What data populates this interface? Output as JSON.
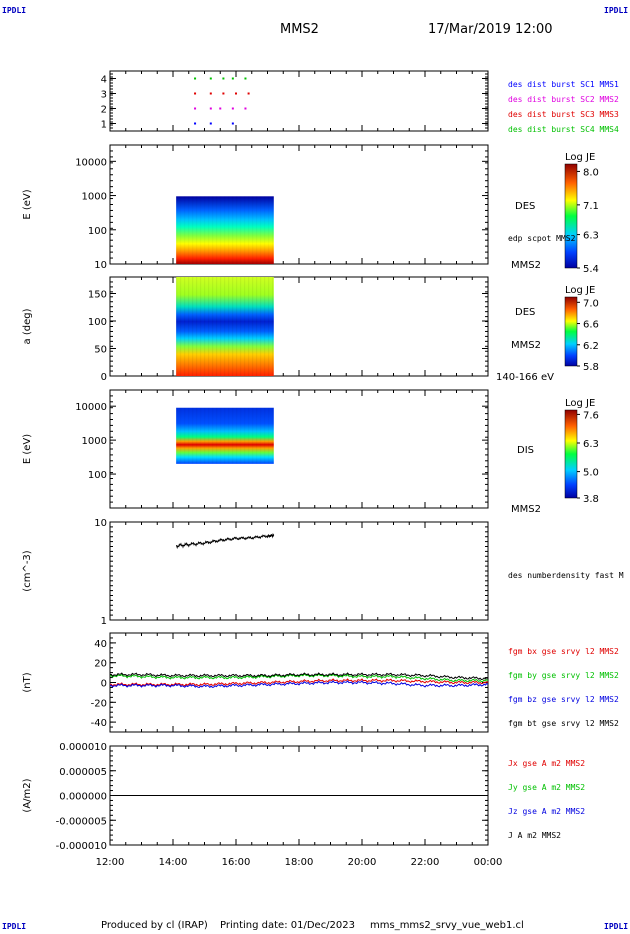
{
  "header": {
    "corner_label": "IPDLI",
    "satellite": "MMS2",
    "date": "17/Mar/2019 12:00"
  },
  "footer": {
    "produced_by": "Produced by cl (IRAP)",
    "printing_date": "Printing date: 01/Dec/2023",
    "filename": "mms_mms2_srvy_vue_web1.cl"
  },
  "colors": {
    "mms1": "#0000ff",
    "mms2": "#e000e0",
    "mms3": "#e00000",
    "mms4": "#00c000",
    "bt": "#000000"
  },
  "chart_data": [
    {
      "type": "scatter",
      "ylim": [
        0.5,
        4.5
      ],
      "yticks": [
        "1",
        "2",
        "3",
        "4"
      ],
      "series": [
        {
          "name": "des dist burst SC1 MMS1",
          "y": 1,
          "x_hours": [
            14.7,
            15.2,
            15.9
          ],
          "color": "#0000ff"
        },
        {
          "name": "des dist burst SC2 MMS2",
          "y": 2,
          "x_hours": [
            14.7,
            15.2,
            15.5,
            15.9,
            16.3
          ],
          "color": "#e000e0"
        },
        {
          "name": "des dist burst SC3 MMS3",
          "y": 3,
          "x_hours": [
            14.7,
            15.2,
            15.6,
            16.0,
            16.4
          ],
          "color": "#e00000"
        },
        {
          "name": "des dist burst SC4 MMS4",
          "y": 4,
          "x_hours": [
            14.7,
            15.2,
            15.6,
            15.9,
            16.3
          ],
          "color": "#00c000"
        }
      ]
    },
    {
      "type": "heatmap",
      "ylabel": "E (eV)",
      "yscale": "log",
      "ylim": [
        10,
        30000
      ],
      "yticks": [
        "10",
        "100",
        "1000",
        "10000"
      ],
      "x_hours_range": [
        14.1,
        17.2
      ],
      "right_labels": [
        "DES",
        "edp scpot MMS2",
        "MMS2"
      ],
      "colorbar": {
        "title": "Log JE",
        "range": [
          5.4,
          8.2
        ],
        "ticks": [
          "8.0",
          "7.1",
          "6.3",
          "5.4"
        ]
      }
    },
    {
      "type": "heatmap",
      "ylabel": "a (deg)",
      "ylim": [
        0,
        180
      ],
      "yticks": [
        "0",
        "50",
        "100",
        "150"
      ],
      "x_hours_range": [
        14.1,
        17.2
      ],
      "right_labels": [
        "DES",
        "MMS2",
        "140-166 eV"
      ],
      "colorbar": {
        "title": "Log JE",
        "range": [
          5.8,
          7.1
        ],
        "ticks": [
          "7.0",
          "6.6",
          "6.2",
          "5.8"
        ]
      }
    },
    {
      "type": "heatmap",
      "ylabel": "E (eV)",
      "yscale": "log",
      "ylim": [
        10,
        30000
      ],
      "yticks": [
        "100",
        "1000",
        "10000"
      ],
      "x_hours_range": [
        14.1,
        17.2
      ],
      "right_labels": [
        "DIS",
        "MMS2"
      ],
      "colorbar": {
        "title": "Log JE",
        "range": [
          3.8,
          7.8
        ],
        "ticks": [
          "7.6",
          "6.3",
          "5.0",
          "3.8"
        ]
      }
    },
    {
      "type": "line",
      "ylabel": "(cm^-3)",
      "yscale": "log",
      "ylim": [
        1,
        10
      ],
      "yticks": [
        "1",
        "10"
      ],
      "right_labels": [
        "des numberdensity fast M"
      ],
      "series": [
        {
          "name": "des numberdensity fast M",
          "color": "#000000",
          "x_hours": [
            14.1,
            14.5,
            15.0,
            15.5,
            16.0,
            16.5,
            17.0,
            17.2
          ],
          "values": [
            5.7,
            5.9,
            6.1,
            6.5,
            6.8,
            6.9,
            7.2,
            7.3
          ]
        }
      ]
    },
    {
      "type": "line",
      "ylabel": "(nT)",
      "ylim": [
        -50,
        50
      ],
      "yticks": [
        "-40",
        "-20",
        "0",
        "20",
        "40"
      ],
      "series": [
        {
          "name": "fgm bx gse srvy l2 MMS2",
          "color": "#e00000",
          "x_hours": [
            12,
            13,
            14,
            15,
            16,
            17,
            18,
            19,
            20,
            21,
            22,
            23,
            24
          ],
          "values": [
            -2,
            -2,
            -2,
            -2,
            -1,
            0,
            1,
            2,
            2,
            2,
            1,
            0,
            0
          ]
        },
        {
          "name": "fgm by gse srvy l2 MMS2",
          "color": "#00c000",
          "x_hours": [
            12,
            13,
            14,
            15,
            16,
            17,
            18,
            19,
            20,
            21,
            22,
            23,
            24
          ],
          "values": [
            7,
            6,
            5,
            5,
            5,
            6,
            7,
            7,
            6,
            6,
            4,
            2,
            2
          ]
        },
        {
          "name": "fgm bz gse srvy l2 MMS2",
          "color": "#0000e0",
          "x_hours": [
            12,
            13,
            14,
            15,
            16,
            17,
            18,
            19,
            20,
            21,
            22,
            23,
            24
          ],
          "values": [
            -3,
            -3,
            -3,
            -4,
            -3,
            -2,
            -1,
            0,
            0,
            -1,
            -3,
            -3,
            -2
          ]
        },
        {
          "name": "fgm bt gse srvy l2 MMS2",
          "color": "#000000",
          "x_hours": [
            12,
            13,
            14,
            15,
            16,
            17,
            18,
            19,
            20,
            21,
            22,
            23,
            24
          ],
          "values": [
            8,
            8,
            7,
            7,
            7,
            7,
            8,
            8,
            8,
            8,
            7,
            5,
            4
          ]
        }
      ]
    },
    {
      "type": "line",
      "ylabel": "(A/m2)",
      "ylim": [
        -1e-05,
        1e-05
      ],
      "yticks": [
        "0.000010",
        "0.000005",
        "0.000000",
        "-0.000005",
        "-0.000010"
      ],
      "series": [
        {
          "name": "Jx gse A m2 MMS2",
          "color": "#e00000"
        },
        {
          "name": "Jy gse A m2 MMS2",
          "color": "#00c000"
        },
        {
          "name": "Jz gse A m2 MMS2",
          "color": "#0000e0"
        },
        {
          "name": "J A m2 MMS2",
          "color": "#000000",
          "x_hours": [
            12,
            14,
            16,
            18,
            20,
            22,
            24
          ],
          "values": [
            0,
            0,
            0,
            0,
            0,
            0,
            0
          ]
        }
      ]
    }
  ],
  "time_axis": {
    "ticks": [
      "12:00",
      "14:00",
      "16:00",
      "18:00",
      "20:00",
      "22:00",
      "00:00"
    ],
    "range_hours": [
      12,
      24
    ]
  }
}
